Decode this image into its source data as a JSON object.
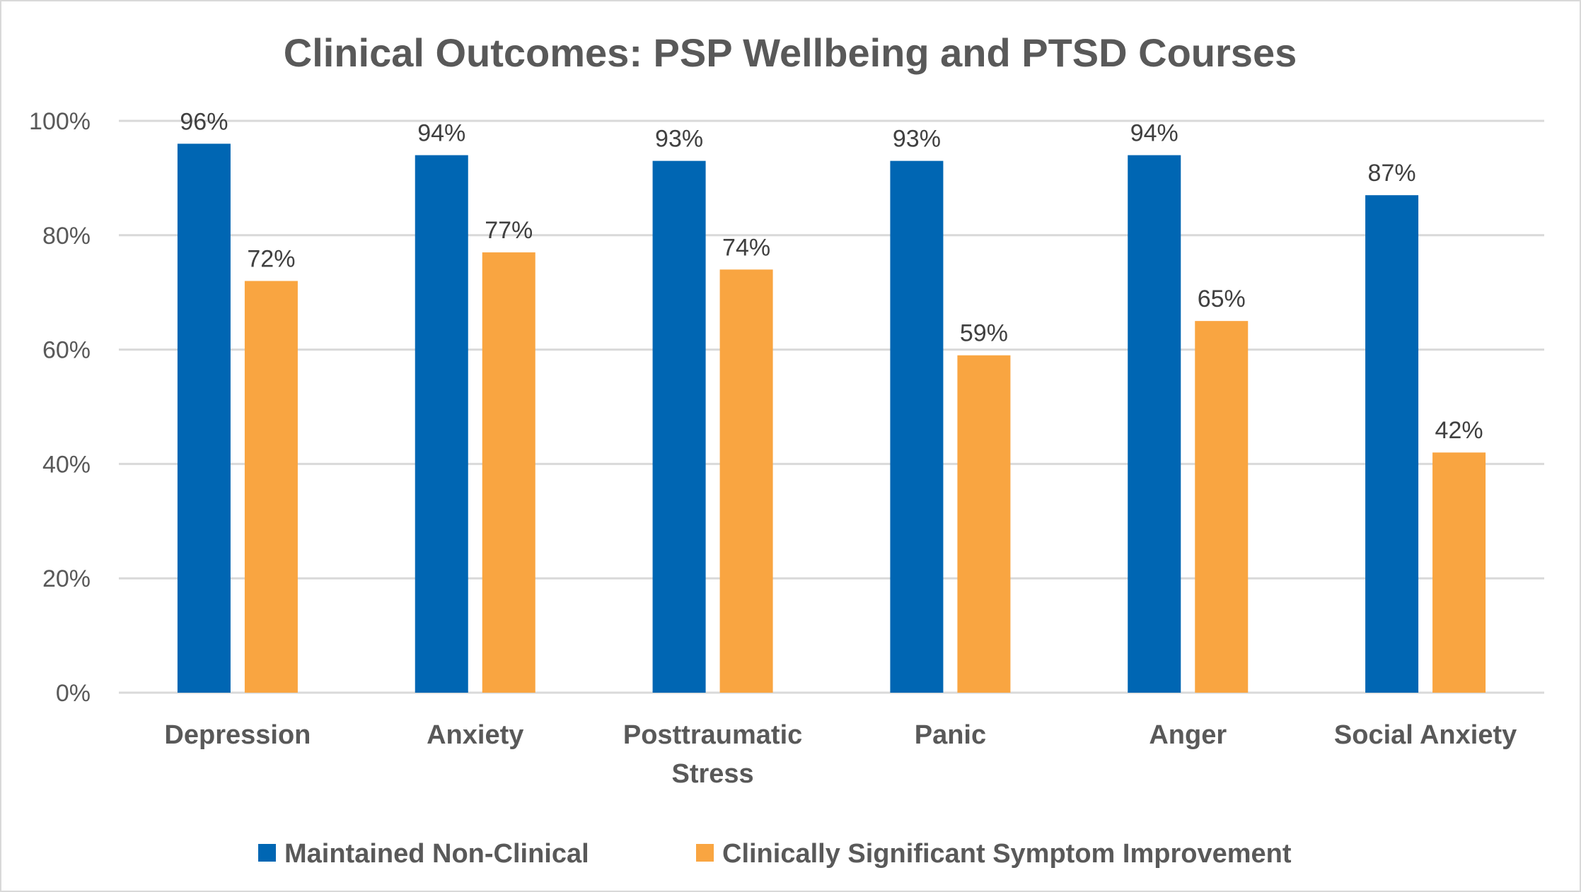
{
  "chart_data": {
    "type": "bar",
    "title": "Clinical Outcomes: PSP Wellbeing and PTSD Courses",
    "xlabel": "",
    "ylabel": "",
    "ylim": [
      0,
      100
    ],
    "yticks": [
      0,
      20,
      40,
      60,
      80,
      100
    ],
    "ytick_labels": [
      "0%",
      "20%",
      "40%",
      "60%",
      "80%",
      "100%"
    ],
    "grid": true,
    "legend_position": "bottom",
    "categories": [
      [
        "Depression"
      ],
      [
        "Anxiety"
      ],
      [
        "Posttraumatic",
        "Stress"
      ],
      [
        "Panic"
      ],
      [
        "Anger"
      ],
      [
        "Social Anxiety"
      ]
    ],
    "series": [
      {
        "name": "Maintained Non-Clinical",
        "color": "#0066B3",
        "values": [
          96,
          94,
          93,
          93,
          94,
          87
        ],
        "labels": [
          "96%",
          "94%",
          "93%",
          "93%",
          "94%",
          "87%"
        ]
      },
      {
        "name": "Clinically Significant Symptom Improvement",
        "color": "#F9A541",
        "values": [
          72,
          77,
          74,
          59,
          65,
          42
        ],
        "labels": [
          "72%",
          "77%",
          "74%",
          "59%",
          "65%",
          "42%"
        ]
      }
    ]
  }
}
